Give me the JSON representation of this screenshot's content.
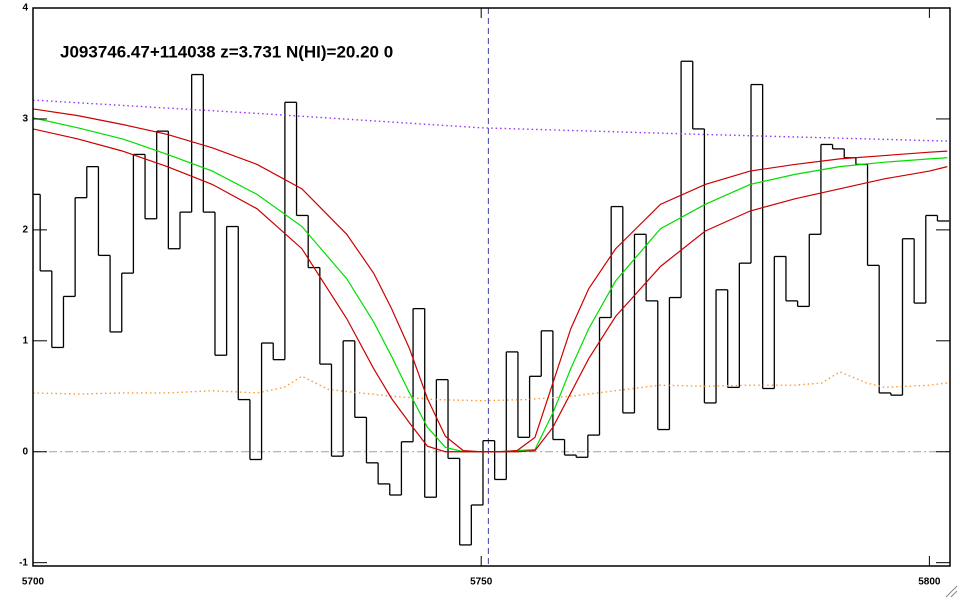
{
  "chart_data": {
    "type": "line",
    "title": "J093746.47+114038 z=3.731 N(HI)=20.20 0",
    "xlim": [
      5700,
      5802.3
    ],
    "ylim": [
      -1.03,
      4
    ],
    "xticks": [
      5700,
      5750,
      5800
    ],
    "yticks": [
      -1,
      0,
      1,
      2,
      3,
      4
    ],
    "hline": {
      "value": 0,
      "color": "#a0a0a0"
    },
    "vline": {
      "value": 5750.8,
      "color": "#4040a0"
    },
    "series": [
      {
        "color": "#000000",
        "style": "step",
        "bins": [
          5699.5,
          5700.8,
          5702.1,
          5703.4,
          5704.7,
          5706.0,
          5707.3,
          5708.6,
          5709.9,
          5711.2,
          5712.5,
          5713.8,
          5715.1,
          5716.4,
          5717.7,
          5719.0,
          5720.3,
          5721.6,
          5722.9,
          5724.2,
          5725.5,
          5726.8,
          5728.1,
          5729.4,
          5730.7,
          5732.0,
          5733.3,
          5734.6,
          5735.9,
          5737.2,
          5738.5,
          5739.8,
          5741.1,
          5742.4,
          5743.7,
          5745.0,
          5746.3,
          5747.6,
          5748.9,
          5750.2,
          5751.5,
          5752.8,
          5754.1,
          5755.4,
          5756.7,
          5758.0,
          5759.3,
          5760.6,
          5761.9,
          5763.2,
          5764.5,
          5765.8,
          5767.1,
          5768.4,
          5769.7,
          5771.0,
          5772.3,
          5773.6,
          5774.9,
          5776.2,
          5777.5,
          5778.8,
          5780.1,
          5781.4,
          5782.7,
          5784.0,
          5785.3,
          5786.6,
          5787.9,
          5789.2,
          5790.5,
          5791.8,
          5793.1,
          5794.4,
          5795.7,
          5797.0,
          5798.3,
          5799.6,
          5800.9,
          5802.2
        ],
        "values": [
          2.32,
          1.63,
          0.94,
          1.4,
          2.29,
          2.57,
          1.77,
          1.08,
          1.61,
          2.68,
          2.1,
          2.89,
          1.83,
          2.16,
          3.4,
          2.16,
          0.87,
          2.03,
          0.47,
          -0.07,
          0.98,
          0.83,
          3.15,
          2.13,
          1.66,
          0.79,
          -0.04,
          1.0,
          0.31,
          -0.1,
          -0.29,
          -0.39,
          0.09,
          1.29,
          -0.41,
          0.65,
          -0.06,
          -0.84,
          -0.48,
          0.1,
          -0.25,
          0.9,
          0.13,
          0.68,
          1.09,
          0.11,
          -0.03,
          -0.05,
          0.15,
          1.21,
          2.21,
          0.35,
          1.96,
          1.36,
          0.2,
          1.39,
          3.52,
          2.91,
          0.44,
          1.46,
          0.58,
          1.7,
          3.31,
          0.57,
          1.76,
          1.36,
          1.31,
          1.96,
          2.77,
          2.73,
          2.65,
          2.59,
          1.68,
          0.53,
          0.51,
          1.92,
          1.34,
          2.13,
          2.08
        ]
      },
      {
        "color": "#9933ff",
        "style": "dotted",
        "x": [
          5700,
          5725,
          5750,
          5775,
          5802
        ],
        "values": [
          3.17,
          3.05,
          2.92,
          2.86,
          2.8
        ]
      },
      {
        "color": "#ff9933",
        "style": "dotted",
        "x": [
          5700,
          5705,
          5710,
          5715,
          5720,
          5725,
          5728,
          5730,
          5733,
          5740,
          5745,
          5750,
          5755,
          5760,
          5765,
          5770,
          5775,
          5780,
          5785,
          5788,
          5790,
          5793,
          5795,
          5800,
          5802
        ],
        "values": [
          0.53,
          0.52,
          0.53,
          0.53,
          0.55,
          0.53,
          0.58,
          0.68,
          0.56,
          0.5,
          0.47,
          0.46,
          0.47,
          0.5,
          0.55,
          0.6,
          0.59,
          0.6,
          0.6,
          0.62,
          0.72,
          0.62,
          0.58,
          0.6,
          0.62
        ]
      },
      {
        "color": "#00dd00",
        "style": "solid",
        "x": [
          5700,
          5705,
          5710,
          5715,
          5720,
          5725,
          5730,
          5735,
          5738,
          5740,
          5742,
          5744,
          5746,
          5748,
          5750,
          5752,
          5754,
          5756,
          5758,
          5760,
          5762,
          5765,
          5770,
          5775,
          5780,
          5785,
          5790,
          5795,
          5800,
          5802
        ],
        "values": [
          3.01,
          2.92,
          2.82,
          2.68,
          2.53,
          2.32,
          2.03,
          1.56,
          1.17,
          0.86,
          0.53,
          0.22,
          0.04,
          0,
          0,
          0,
          0.01,
          0.02,
          0.35,
          0.75,
          1.11,
          1.54,
          2.01,
          2.23,
          2.41,
          2.5,
          2.57,
          2.61,
          2.64,
          2.65
        ]
      },
      {
        "color": "#cc0000",
        "style": "solid",
        "x": [
          5700,
          5705,
          5710,
          5715,
          5720,
          5725,
          5730,
          5735,
          5738,
          5740,
          5742,
          5744,
          5746,
          5748,
          5750,
          5752,
          5754,
          5756,
          5758,
          5760,
          5762,
          5765,
          5770,
          5775,
          5780,
          5785,
          5790,
          5795,
          5800,
          5802
        ],
        "values": [
          3.09,
          3.03,
          2.95,
          2.86,
          2.74,
          2.59,
          2.37,
          1.96,
          1.61,
          1.29,
          0.93,
          0.48,
          0.14,
          0.01,
          0,
          0,
          0.01,
          0.13,
          0.62,
          1.11,
          1.47,
          1.83,
          2.23,
          2.41,
          2.53,
          2.59,
          2.64,
          2.67,
          2.7,
          2.71
        ]
      },
      {
        "color": "#cc0000",
        "style": "solid",
        "x": [
          5700,
          5705,
          5710,
          5715,
          5720,
          5725,
          5730,
          5735,
          5738,
          5740,
          5742,
          5744,
          5746,
          5748,
          5750,
          5752,
          5754,
          5756,
          5758,
          5760,
          5762,
          5765,
          5770,
          5775,
          5780,
          5785,
          5790,
          5795,
          5800,
          5802
        ],
        "values": [
          2.91,
          2.82,
          2.71,
          2.57,
          2.41,
          2.19,
          1.83,
          1.2,
          0.75,
          0.48,
          0.26,
          0.05,
          0,
          0,
          0,
          0,
          0,
          0.01,
          0.22,
          0.53,
          0.84,
          1.22,
          1.67,
          1.99,
          2.17,
          2.28,
          2.37,
          2.46,
          2.53,
          2.57
        ]
      }
    ]
  }
}
